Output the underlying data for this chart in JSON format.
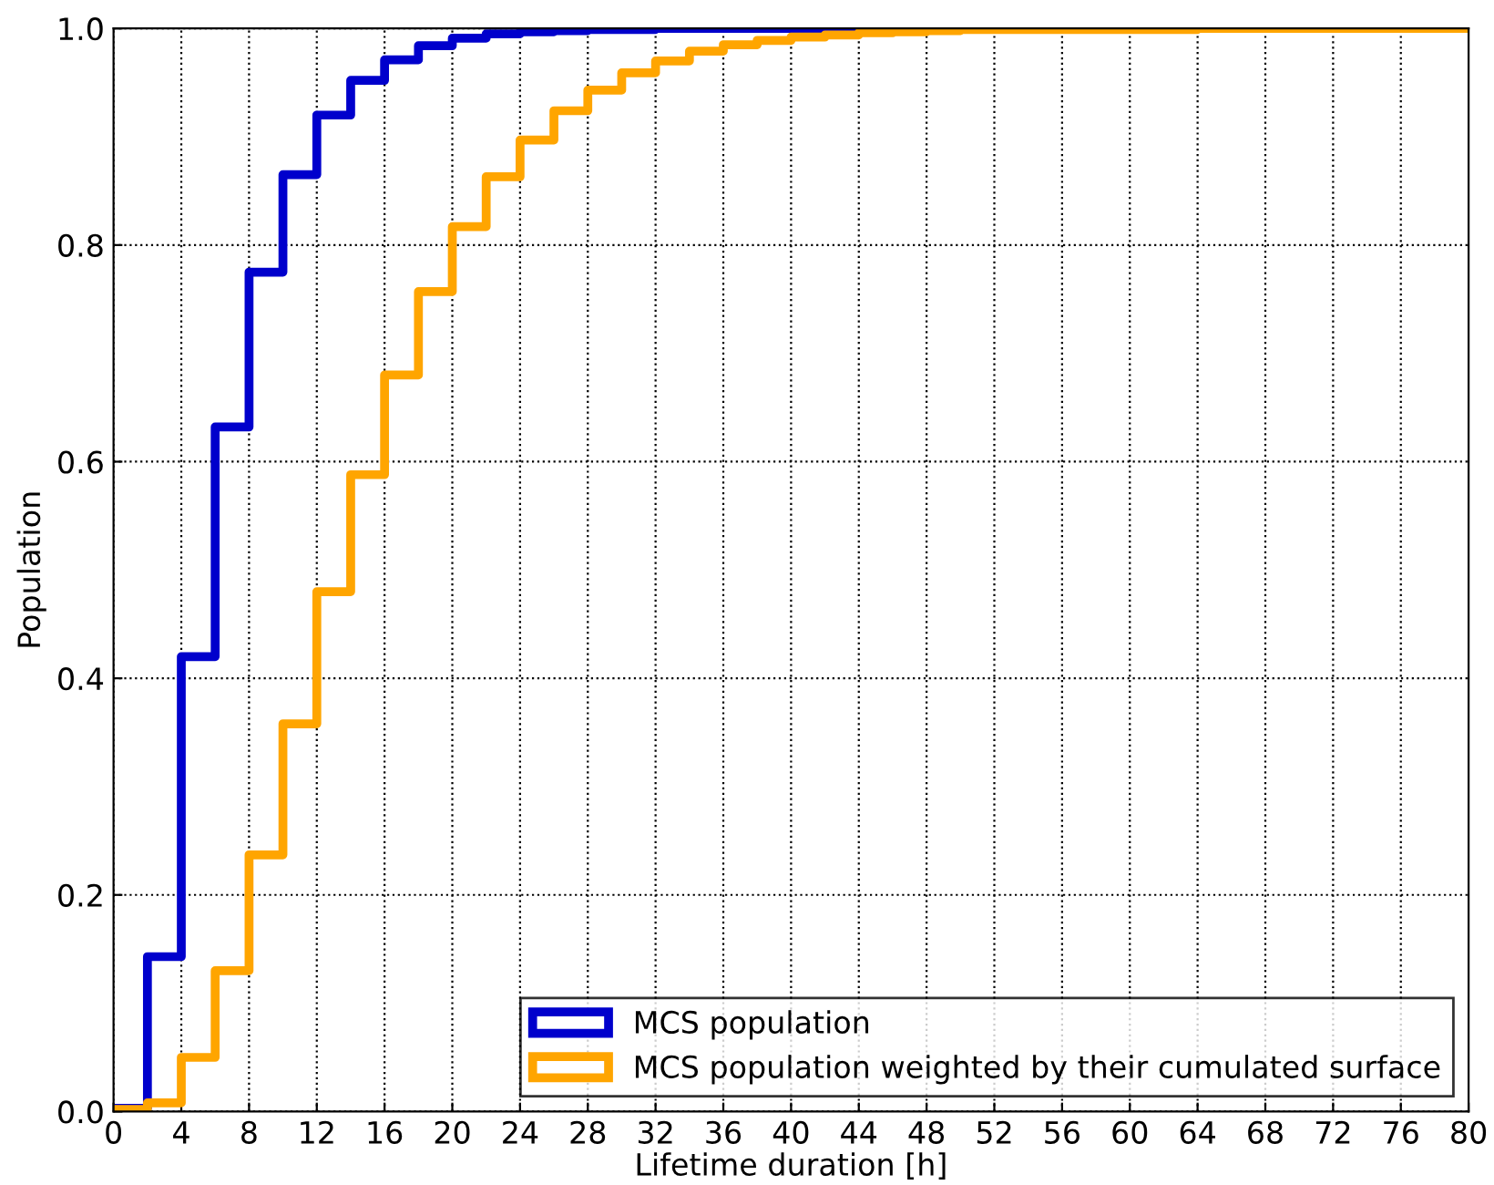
{
  "chart_data": {
    "type": "step",
    "xlabel": "Lifetime duration [h]",
    "ylabel": "Population",
    "x": [
      0,
      2,
      4,
      6,
      8,
      10,
      12,
      14,
      16,
      18,
      20,
      22,
      24,
      26,
      28,
      30,
      32,
      34,
      36,
      38,
      40,
      42,
      44,
      46,
      48,
      50,
      52,
      54,
      56,
      58,
      60,
      62,
      64,
      66,
      68,
      70,
      72,
      74,
      76,
      78,
      80
    ],
    "series": [
      {
        "name": "MCS population",
        "color": "#0000cc",
        "values": [
          0.003,
          0.143,
          0.42,
          0.632,
          0.775,
          0.865,
          0.92,
          0.952,
          0.971,
          0.984,
          0.991,
          0.995,
          0.997,
          0.998,
          0.999,
          0.999,
          1,
          1,
          1,
          1,
          1,
          1,
          1,
          null,
          null,
          null,
          null,
          null,
          null,
          null,
          null,
          null,
          null,
          null,
          null,
          null,
          null,
          null,
          null,
          null,
          null
        ]
      },
      {
        "name": "MCS population weighted by their cumulated surface",
        "color": "#ffa500",
        "values": [
          0.002,
          0.008,
          0.05,
          0.13,
          0.237,
          0.358,
          0.48,
          0.588,
          0.68,
          0.757,
          0.817,
          0.863,
          0.897,
          0.924,
          0.943,
          0.959,
          0.97,
          0.979,
          0.985,
          0.989,
          0.992,
          0.994,
          0.996,
          0.997,
          0.998,
          0.999,
          0.999,
          0.999,
          0.999,
          0.999,
          0.999,
          0.999,
          1,
          1,
          1,
          1,
          1,
          1,
          1,
          1,
          1
        ]
      }
    ],
    "xlim": [
      0,
      80
    ],
    "xticks": [
      0,
      4,
      8,
      12,
      16,
      20,
      24,
      28,
      32,
      36,
      40,
      44,
      48,
      52,
      56,
      60,
      64,
      68,
      72,
      76,
      80
    ],
    "ylim": [
      0,
      1
    ],
    "yticks": [
      {
        "value": 0,
        "label": "0.0"
      },
      {
        "value": 0.2,
        "label": "0.2"
      },
      {
        "value": 0.4,
        "label": "0.4"
      },
      {
        "value": 0.6,
        "label": "0.6"
      },
      {
        "value": 0.8,
        "label": "0.8"
      },
      {
        "value": 1,
        "label": "1.0"
      }
    ],
    "grid": true,
    "legend": "bottom right"
  }
}
